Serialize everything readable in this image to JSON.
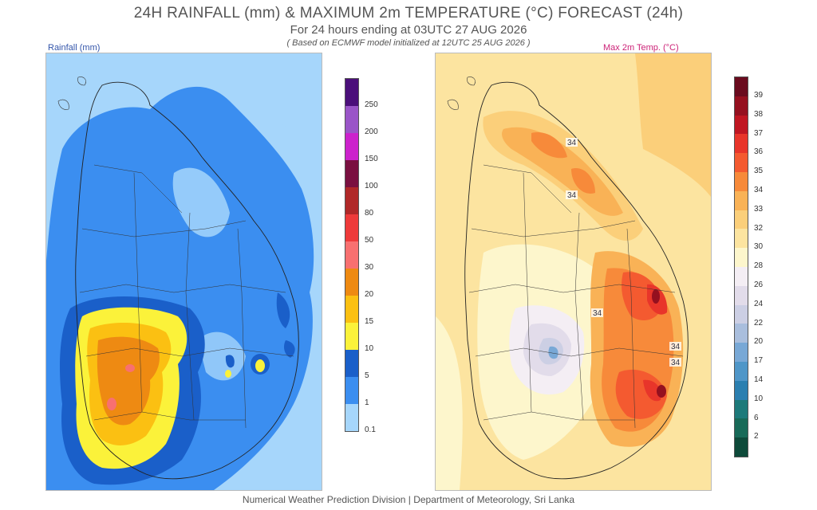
{
  "header": {
    "title": "24H RAINFALL (mm) & MAXIMUM 2m TEMPERATURE (°C) FORECAST (24h)",
    "subtitle": "For 24 hours ending at 03UTC 27 AUG 2026",
    "model_note": "( Based on ECMWF model initialized at 12UTC 25 AUG 2026 )"
  },
  "rainfall_panel": {
    "label": "Rainfall (mm)",
    "label_color": "#3355aa",
    "legend": [
      {
        "value": "250",
        "color": "#4b0f7a"
      },
      {
        "value": "200",
        "color": "#9a55c8"
      },
      {
        "value": "150",
        "color": "#cc22cc"
      },
      {
        "value": "100",
        "color": "#7a1040"
      },
      {
        "value": "80",
        "color": "#b02828"
      },
      {
        "value": "50",
        "color": "#ee3a3a"
      },
      {
        "value": "30",
        "color": "#f87070"
      },
      {
        "value": "20",
        "color": "#ee8a12"
      },
      {
        "value": "15",
        "color": "#fbc012"
      },
      {
        "value": "10",
        "color": "#fbf23a"
      },
      {
        "value": "5",
        "color": "#1a5fc9"
      },
      {
        "value": "1",
        "color": "#3b8ef0"
      },
      {
        "value": "0.1",
        "color": "#a6d6fb"
      }
    ]
  },
  "temperature_panel": {
    "label": "Max 2m Temp. (°C)",
    "label_color": "#cc2277",
    "legend": [
      {
        "value": "39",
        "color": "#6a0b1e"
      },
      {
        "value": "38",
        "color": "#95101f"
      },
      {
        "value": "37",
        "color": "#c01622"
      },
      {
        "value": "36",
        "color": "#e8352a"
      },
      {
        "value": "35",
        "color": "#f45a30"
      },
      {
        "value": "34",
        "color": "#f78a3a"
      },
      {
        "value": "33",
        "color": "#f9b256"
      },
      {
        "value": "32",
        "color": "#fbcf7a"
      },
      {
        "value": "30",
        "color": "#fce4a0"
      },
      {
        "value": "28",
        "color": "#fdf6cc"
      },
      {
        "value": "26",
        "color": "#f4eef4"
      },
      {
        "value": "24",
        "color": "#e2dcea"
      },
      {
        "value": "22",
        "color": "#cccfe4"
      },
      {
        "value": "20",
        "color": "#a9bedd"
      },
      {
        "value": "17",
        "color": "#78a8d6"
      },
      {
        "value": "14",
        "color": "#4f96c8"
      },
      {
        "value": "10",
        "color": "#2b7fb0"
      },
      {
        "value": "6",
        "color": "#1d7a7a"
      },
      {
        "value": "2",
        "color": "#186a58"
      },
      {
        "value": "",
        "color": "#0e4a3a"
      }
    ],
    "contour_labels": [
      "34",
      "34",
      "34",
      "34",
      "34"
    ]
  },
  "footer": "Numerical Weather Prediction Division | Department of Meteorology, Sri Lanka"
}
